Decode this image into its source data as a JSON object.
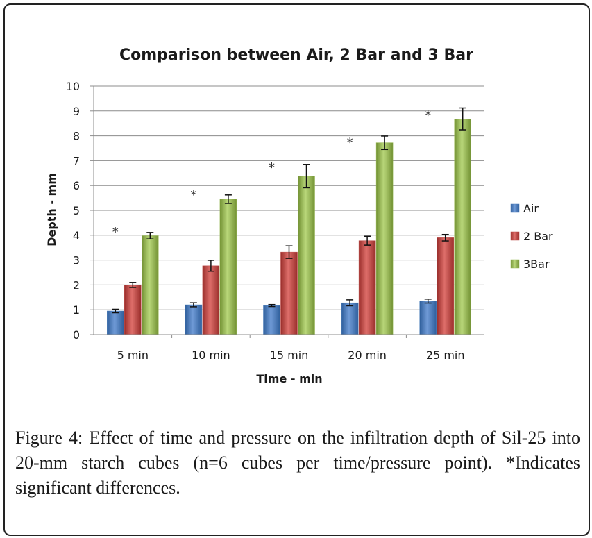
{
  "caption": {
    "label": "Figure 4:",
    "text": " Effect of time and pressure on the infiltration depth of Sil-25 into 20-mm starch cubes (n=6 cubes per time/pressure point). *Indicates significant differences."
  },
  "chart_data": {
    "type": "bar",
    "title": "Comparison between Air, 2 Bar and 3 Bar",
    "xlabel": "Time - min",
    "ylabel": "Depth - mm",
    "categories": [
      "5 min",
      "10 min",
      "15 min",
      "20 min",
      "25 min"
    ],
    "ylim": [
      0,
      10
    ],
    "yticks": [
      0,
      1,
      2,
      3,
      4,
      5,
      6,
      7,
      8,
      9,
      10
    ],
    "grid": true,
    "legend_position": "right",
    "series": [
      {
        "name": "Air",
        "color": "#4a7ebb",
        "values": [
          0.95,
          1.2,
          1.17,
          1.28,
          1.35
        ],
        "errors": [
          0.07,
          0.08,
          0.04,
          0.12,
          0.08
        ]
      },
      {
        "name": "2 Bar",
        "color": "#be4b48",
        "values": [
          2.0,
          2.77,
          3.32,
          3.78,
          3.9
        ],
        "errors": [
          0.1,
          0.22,
          0.25,
          0.18,
          0.13
        ]
      },
      {
        "name": "3Bar",
        "color": "#98b954",
        "values": [
          3.98,
          5.45,
          6.38,
          7.72,
          8.68
        ],
        "errors": [
          0.13,
          0.17,
          0.47,
          0.27,
          0.44
        ]
      }
    ],
    "annotations": [
      {
        "text": "*",
        "category": "5 min",
        "y": 4.3
      },
      {
        "text": "*",
        "category": "10 min",
        "y": 5.8
      },
      {
        "text": "*",
        "category": "15 min",
        "y": 6.9
      },
      {
        "text": "*",
        "category": "20 min",
        "y": 7.9
      },
      {
        "text": "*",
        "category": "25 min",
        "y": 9.0
      }
    ]
  }
}
